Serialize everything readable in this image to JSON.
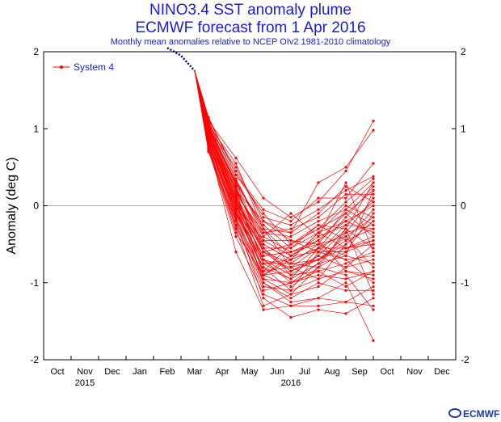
{
  "title": "NINO3.4 SST anomaly plume",
  "subtitle": "ECMWF forecast from 1 Apr 2016",
  "caption": "Monthly mean anomalies relative to NCEP OIv2 1981-2010 climatology",
  "logo_text": "ECMWF",
  "chart_data": {
    "type": "line",
    "ylabel": "Anomaly (deg C)",
    "xlabel": "",
    "ylim": [
      -2,
      2
    ],
    "yticks": [
      -2,
      -1,
      0,
      1,
      2
    ],
    "yticklabels": [
      "-2",
      "-1",
      "0",
      "1",
      "2"
    ],
    "months": [
      "Oct",
      "Nov",
      "Dec",
      "Jan",
      "Feb",
      "Mar",
      "Apr",
      "May",
      "Jun",
      "Jul",
      "Aug",
      "Sep",
      "Oct",
      "Nov",
      "Dec"
    ],
    "years": [
      {
        "label": "2015",
        "month_index": 1
      },
      {
        "label": "2016",
        "month_index": 8.5
      }
    ],
    "legend": {
      "label": "System 4",
      "position": "top-left"
    },
    "grid": false,
    "zero_line": true,
    "colors": {
      "forecast": "#ff0000",
      "analysis": "#00007a",
      "title": "#1a1ae6",
      "zero_line": "#aaaaaa"
    },
    "analysis": {
      "x": [
        4.5,
        5.0,
        5.5
      ],
      "values": [
        2.05,
        1.95,
        1.75
      ]
    },
    "ensemble_x": [
      5.5,
      6.0,
      7.0,
      8.0,
      9.0,
      10.0,
      11.0,
      12.0
    ],
    "ensemble_members": [
      [
        1.75,
        1.05,
        0.55,
        -0.3,
        -0.8,
        -0.7,
        -0.5,
        -0.2
      ],
      [
        1.75,
        0.95,
        0.2,
        -0.9,
        -1.05,
        -0.8,
        -0.6,
        -0.1
      ],
      [
        1.75,
        1.1,
        0.62,
        0.1,
        -0.15,
        0.05,
        0.45,
        1.1
      ],
      [
        1.75,
        0.8,
        -0.6,
        -1.35,
        -1.3,
        -1.3,
        -1.25,
        -1.3
      ],
      [
        1.75,
        1.0,
        0.3,
        -0.55,
        -0.9,
        -0.65,
        -0.3,
        0.3
      ],
      [
        1.75,
        0.9,
        0.05,
        -1.0,
        -1.25,
        -1.2,
        -1.0,
        -1.75
      ],
      [
        1.75,
        1.15,
        0.4,
        -0.1,
        -0.5,
        -0.3,
        0.05,
        0.35
      ],
      [
        1.75,
        0.7,
        -0.2,
        -1.2,
        -1.45,
        -1.35,
        -1.4,
        -1.2
      ],
      [
        1.75,
        1.05,
        0.25,
        -0.6,
        -0.75,
        -0.5,
        -0.4,
        -0.8
      ],
      [
        1.75,
        0.85,
        -0.1,
        -0.8,
        -1.1,
        -0.95,
        -0.85,
        -0.95
      ],
      [
        1.75,
        1.0,
        0.5,
        -0.2,
        -0.35,
        0.3,
        0.5,
        0.98
      ],
      [
        1.75,
        0.95,
        0.15,
        -0.75,
        -0.7,
        -0.55,
        -0.7,
        -1.0
      ],
      [
        1.75,
        0.75,
        -0.3,
        -1.3,
        -1.15,
        -0.8,
        -0.9,
        -1.35
      ],
      [
        1.75,
        1.1,
        0.35,
        -0.4,
        -0.6,
        -0.45,
        -0.1,
        0.2
      ],
      [
        1.75,
        0.9,
        0.0,
        -0.95,
        -1.0,
        -0.75,
        -0.35,
        0.1
      ],
      [
        1.75,
        0.8,
        -0.05,
        -0.85,
        -0.8,
        -0.55,
        -0.15,
        0.25
      ],
      [
        1.75,
        1.05,
        0.2,
        -0.45,
        -0.45,
        -0.6,
        -0.6,
        -0.45
      ],
      [
        1.75,
        0.95,
        0.1,
        -0.7,
        -0.9,
        -0.85,
        -0.75,
        -0.6
      ],
      [
        1.75,
        0.85,
        -0.15,
        -1.0,
        -1.2,
        -1.0,
        -1.1,
        -1.1
      ],
      [
        1.75,
        1.0,
        0.3,
        -0.3,
        -0.65,
        -0.4,
        -0.25,
        0.05
      ],
      [
        1.75,
        0.9,
        0.05,
        -0.6,
        -0.75,
        -0.7,
        -0.45,
        -0.3
      ],
      [
        1.75,
        0.78,
        -0.25,
        -1.1,
        -1.0,
        -0.9,
        -0.95,
        -0.85
      ],
      [
        1.75,
        1.12,
        0.45,
        -0.15,
        -0.25,
        -0.05,
        0.2,
        0.38
      ],
      [
        1.75,
        0.88,
        -0.05,
        -0.75,
        -0.95,
        -0.55,
        -0.55,
        -0.5
      ],
      [
        1.75,
        0.95,
        0.1,
        -0.55,
        -0.55,
        -0.35,
        0.0,
        -0.15
      ],
      [
        1.75,
        0.82,
        -0.2,
        -0.9,
        -0.85,
        -0.65,
        -0.8,
        -0.7
      ],
      [
        1.75,
        1.08,
        0.35,
        -0.35,
        -0.4,
        -0.2,
        -0.05,
        0.3
      ],
      [
        1.75,
        0.92,
        0.0,
        -0.65,
        -0.6,
        -0.45,
        -0.2,
        -0.35
      ],
      [
        1.75,
        0.72,
        -0.4,
        -1.15,
        -1.3,
        -1.2,
        -1.25,
        -1.05
      ],
      [
        1.75,
        1.02,
        0.22,
        -0.5,
        -0.7,
        -0.55,
        -0.35,
        -0.25
      ],
      [
        1.75,
        0.98,
        0.15,
        -0.35,
        -0.3,
        -0.15,
        0.15,
        0.15
      ],
      [
        1.75,
        0.86,
        -0.12,
        -0.8,
        -0.95,
        -0.75,
        -0.65,
        -0.75
      ],
      [
        1.75,
        1.06,
        0.28,
        -0.25,
        -0.55,
        -0.25,
        -0.3,
        -0.55
      ],
      [
        1.75,
        0.9,
        0.08,
        -0.7,
        -0.8,
        -0.95,
        -0.5,
        -0.2
      ],
      [
        1.75,
        0.8,
        -0.18,
        -1.05,
        -1.1,
        -0.6,
        -0.7,
        -0.65
      ],
      [
        1.75,
        0.96,
        0.12,
        -0.5,
        -0.7,
        -0.35,
        -0.2,
        0.0
      ],
      [
        1.75,
        0.74,
        -0.35,
        -0.9,
        -0.65,
        -0.45,
        -0.85,
        -0.9
      ],
      [
        1.75,
        1.04,
        0.26,
        -0.6,
        -0.85,
        -0.7,
        -0.55,
        -0.4
      ],
      [
        1.75,
        0.84,
        -0.08,
        -0.75,
        -0.75,
        -0.8,
        -0.3,
        -1.15
      ],
      [
        1.75,
        0.94,
        0.06,
        -0.85,
        -0.5,
        -0.25,
        -0.45,
        -0.05
      ],
      [
        1.75,
        1.0,
        0.18,
        -0.4,
        -0.1,
        -0.4,
        0.3,
        -0.6
      ],
      [
        1.75,
        0.88,
        -0.02,
        -0.65,
        -0.6,
        -0.5,
        -0.05,
        -0.25
      ],
      [
        1.75,
        1.14,
        0.4,
        -0.05,
        -0.2,
        0.1,
        0.1,
        0.55
      ],
      [
        1.75,
        0.76,
        -0.28,
        -0.95,
        -1.15,
        -1.05,
        -0.8,
        -0.5
      ],
      [
        1.75,
        0.92,
        0.02,
        -0.45,
        -0.65,
        -0.6,
        -0.25,
        -0.3
      ],
      [
        1.75,
        0.98,
        0.2,
        -0.2,
        -0.45,
        -0.5,
        -0.65,
        0.2
      ],
      [
        1.75,
        0.86,
        -0.1,
        -0.7,
        -1.0,
        -0.85,
        -1.05,
        -0.85
      ],
      [
        1.75,
        0.82,
        -0.15,
        -0.9,
        -0.7,
        -0.35,
        -0.55,
        -0.45
      ],
      [
        1.75,
        1.02,
        0.32,
        -0.3,
        -0.35,
        -0.1,
        0.25,
        0.05
      ],
      [
        1.75,
        0.9,
        0.0,
        -0.55,
        -0.85,
        -0.7,
        -0.4,
        -0.15
      ],
      [
        1.75,
        0.96,
        0.1,
        -0.6,
        -0.5,
        -0.3,
        -0.1,
        -0.4
      ]
    ]
  }
}
